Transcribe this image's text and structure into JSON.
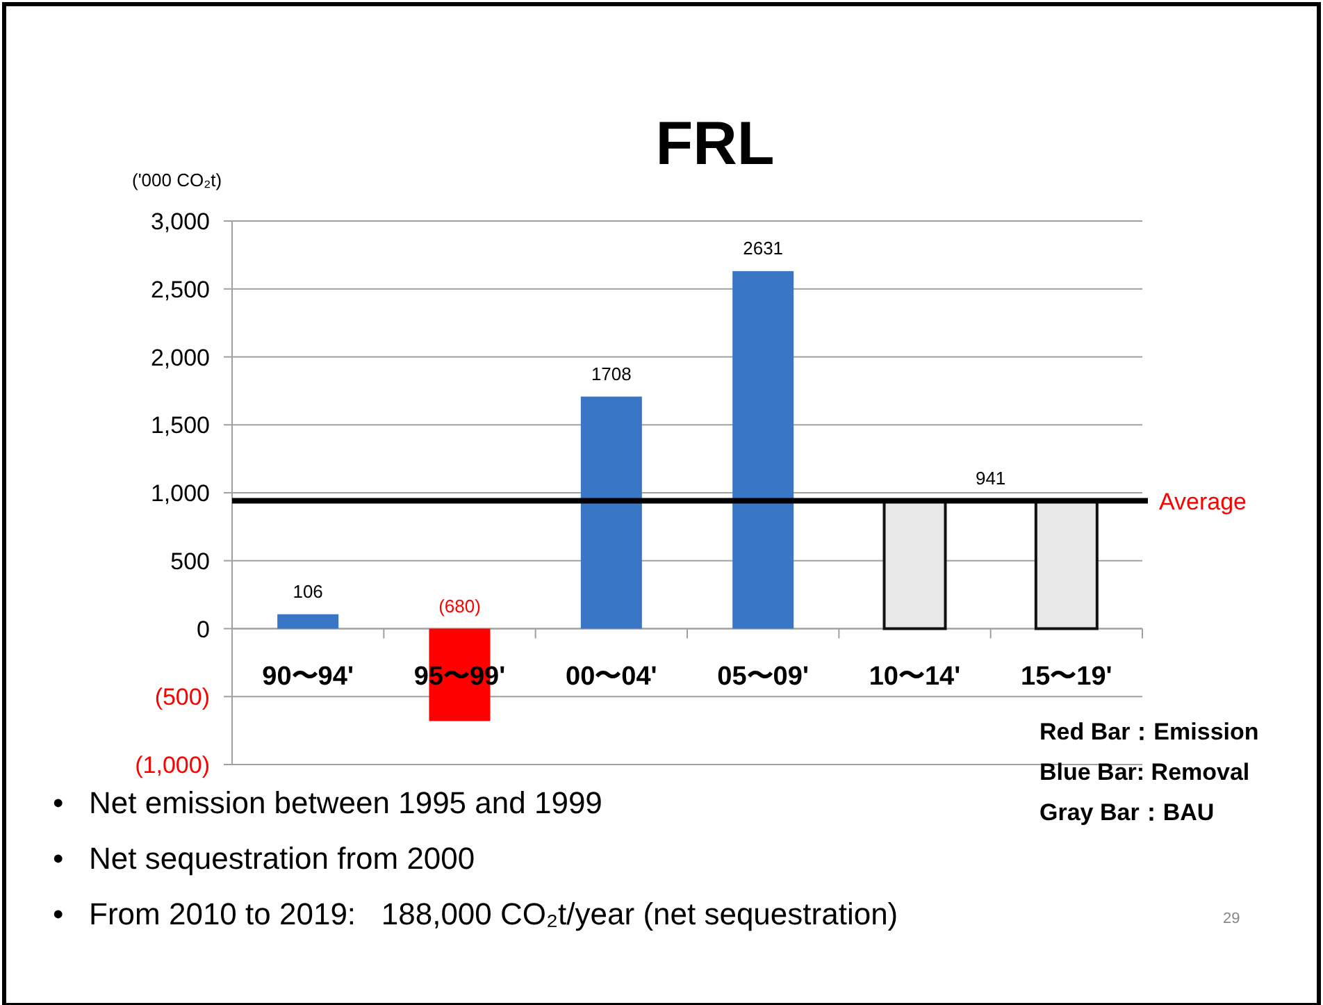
{
  "chart_data": {
    "type": "bar",
    "title": "FRL",
    "ylabel": "('000 CO₂t)",
    "categories": [
      "90〜94'",
      "95〜99'",
      "00〜04'",
      "05〜09'",
      "10〜14'",
      "15〜19'"
    ],
    "values": [
      106,
      -680,
      1708,
      2631,
      941,
      941
    ],
    "colors": [
      "#3a76c6",
      "#ff0000",
      "#3a76c6",
      "#3a76c6",
      "#e8e8e8",
      "#e8e8e8"
    ],
    "value_labels": [
      "106",
      "(680)",
      "1708",
      "2631",
      null,
      null
    ],
    "ylim": [
      -1000,
      3000
    ],
    "yticks": [
      {
        "value": -1000,
        "label": "(1,000)"
      },
      {
        "value": -500,
        "label": "(500)"
      },
      0,
      {
        "value": 500,
        "label": "500"
      },
      {
        "value": 1000,
        "label": "1,000"
      },
      {
        "value": 1500,
        "label": "1,500"
      },
      {
        "value": 2000,
        "label": "2,000"
      },
      {
        "value": 2500,
        "label": "2,500"
      },
      {
        "value": 3000,
        "label": "3,000"
      }
    ],
    "grid": "y",
    "ref_lines": [
      {
        "axis": "y",
        "value": 941,
        "label": "Average",
        "color": "#000000"
      }
    ],
    "annotations": [
      {
        "text": "941",
        "y": 941
      },
      "Red Bar：Emission",
      "Blue Bar: Removal",
      "Gray  Bar：BAU",
      "•   Net emission between 1995 and 1999",
      "•   Net sequestration from 2000",
      "•   From 2010 to 2019:   188,000 CO₂t/year (net sequestration)",
      "29"
    ]
  }
}
